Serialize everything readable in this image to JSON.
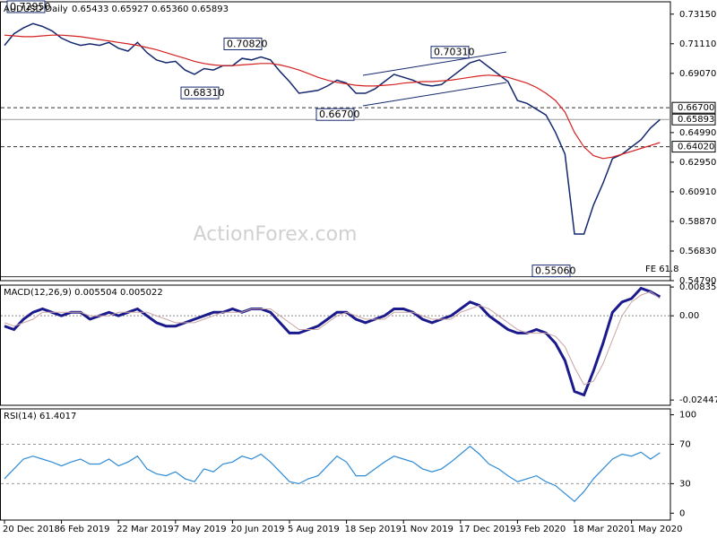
{
  "chart_data": [
    {
      "type": "line",
      "title": "AUDUSD Daily",
      "subtitle": "0.65433 0.65927 0.65360 0.65893",
      "watermark": "ActionForex.com",
      "ylim": [
        0.5479,
        0.74
      ],
      "yticks": [
        {
          "value": 0.7315,
          "label": "0.73150"
        },
        {
          "value": 0.7111,
          "label": "0.71110"
        },
        {
          "value": 0.6907,
          "label": "0.69070"
        },
        {
          "value": 0.6499,
          "label": "0.64990"
        },
        {
          "value": 0.6295,
          "label": "0.62950"
        },
        {
          "value": 0.6091,
          "label": "0.60910"
        },
        {
          "value": 0.5887,
          "label": "0.58870"
        },
        {
          "value": 0.5683,
          "label": "0.56830"
        },
        {
          "value": 0.5479,
          "label": "0.54790"
        }
      ],
      "levels": [
        {
          "value": 0.667,
          "label": "0.66700",
          "style": "dashed"
        },
        {
          "value": 0.65893,
          "label": "0.65893",
          "style": "solid"
        },
        {
          "value": 0.6402,
          "label": "0.64020",
          "style": "dashed"
        }
      ],
      "annotations": [
        {
          "value": 0.7295,
          "label": "0.72950"
        },
        {
          "value": 0.7082,
          "label": "0.70820"
        },
        {
          "value": 0.6831,
          "label": "0.68310"
        },
        {
          "value": 0.7031,
          "label": "0.70310"
        },
        {
          "value": 0.667,
          "label": "0.66700"
        },
        {
          "value": 0.5506,
          "label": "0.55060"
        }
      ],
      "note": "FE 61.8",
      "series": [
        {
          "name": "AUDUSD",
          "color": "#14286e",
          "values": [
            0.71,
            0.718,
            0.722,
            0.725,
            0.723,
            0.72,
            0.715,
            0.712,
            0.71,
            0.711,
            0.71,
            0.712,
            0.708,
            0.706,
            0.712,
            0.705,
            0.7,
            0.698,
            0.699,
            0.693,
            0.69,
            0.694,
            0.693,
            0.696,
            0.696,
            0.701,
            0.7,
            0.702,
            0.7,
            0.692,
            0.685,
            0.677,
            0.678,
            0.679,
            0.682,
            0.686,
            0.684,
            0.677,
            0.677,
            0.68,
            0.685,
            0.69,
            0.688,
            0.686,
            0.683,
            0.682,
            0.683,
            0.688,
            0.693,
            0.698,
            0.7,
            0.695,
            0.69,
            0.685,
            0.672,
            0.67,
            0.666,
            0.662,
            0.65,
            0.635,
            0.58,
            0.58,
            0.6,
            0.615,
            0.632,
            0.635,
            0.64,
            0.645,
            0.653,
            0.6589
          ]
        },
        {
          "name": "MA",
          "color": "#d42020",
          "values": [
            0.717,
            0.7165,
            0.716,
            0.716,
            0.7165,
            0.717,
            0.717,
            0.7165,
            0.716,
            0.715,
            0.714,
            0.713,
            0.712,
            0.711,
            0.71,
            0.7085,
            0.707,
            0.705,
            0.703,
            0.701,
            0.699,
            0.6975,
            0.6965,
            0.696,
            0.696,
            0.6965,
            0.697,
            0.6975,
            0.6975,
            0.6965,
            0.695,
            0.693,
            0.6905,
            0.688,
            0.686,
            0.6845,
            0.6835,
            0.6825,
            0.682,
            0.682,
            0.6825,
            0.683,
            0.684,
            0.6845,
            0.685,
            0.685,
            0.6855,
            0.686,
            0.687,
            0.688,
            0.689,
            0.6895,
            0.689,
            0.688,
            0.686,
            0.684,
            0.681,
            0.677,
            0.672,
            0.664,
            0.65,
            0.64,
            0.634,
            0.632,
            0.633,
            0.635,
            0.637,
            0.639,
            0.641,
            0.643
          ]
        }
      ]
    },
    {
      "type": "line",
      "title": "MACD(12,26,9) 0.005504 0.005022",
      "ylim": [
        -0.026,
        0.0089
      ],
      "yticks": [
        0.008354,
        {
          "value": 0,
          "label": "0.00"
        },
        -0.02447
      ],
      "series": [
        {
          "name": "MACD",
          "color": "#1a1a8c",
          "values": [
            -0.003,
            -0.004,
            -0.001,
            0.001,
            0.002,
            0.001,
            0.0,
            0.001,
            0.001,
            -0.001,
            0.0,
            0.001,
            0.0,
            0.001,
            0.002,
            0.0,
            -0.002,
            -0.003,
            -0.003,
            -0.002,
            -0.001,
            0.0,
            0.001,
            0.001,
            0.002,
            0.001,
            0.002,
            0.002,
            0.001,
            -0.002,
            -0.005,
            -0.005,
            -0.004,
            -0.003,
            -0.001,
            0.001,
            0.001,
            -0.001,
            -0.002,
            -0.001,
            0.0,
            0.002,
            0.002,
            0.001,
            -0.001,
            -0.002,
            -0.001,
            0.0,
            0.002,
            0.004,
            0.003,
            0.0,
            -0.002,
            -0.004,
            -0.005,
            -0.005,
            -0.004,
            -0.005,
            -0.008,
            -0.013,
            -0.022,
            -0.023,
            -0.016,
            -0.008,
            0.001,
            0.004,
            0.005,
            0.008,
            0.007,
            0.0055
          ]
        },
        {
          "name": "Signal",
          "color": "#c9a3a3",
          "values": [
            -0.002,
            -0.003,
            -0.002,
            -0.001,
            0.001,
            0.001,
            0.001,
            0.001,
            0.001,
            0.0,
            0.0,
            0.0,
            0.001,
            0.001,
            0.001,
            0.001,
            0.0,
            -0.001,
            -0.002,
            -0.002,
            -0.002,
            -0.001,
            0.0,
            0.001,
            0.001,
            0.001,
            0.002,
            0.002,
            0.002,
            0.0,
            -0.002,
            -0.004,
            -0.004,
            -0.004,
            -0.002,
            0.0,
            0.001,
            0.0,
            -0.001,
            -0.001,
            -0.001,
            0.001,
            0.001,
            0.001,
            0.0,
            -0.001,
            -0.001,
            -0.001,
            0.001,
            0.002,
            0.003,
            0.002,
            0.0,
            -0.002,
            -0.004,
            -0.005,
            -0.005,
            -0.005,
            -0.006,
            -0.009,
            -0.015,
            -0.02,
            -0.019,
            -0.014,
            -0.007,
            0.0,
            0.004,
            0.006,
            0.007,
            0.005
          ]
        }
      ]
    },
    {
      "type": "line",
      "title": "RSI(14) 61.4017",
      "ylim": [
        -7,
        106
      ],
      "yticks": [
        100,
        70,
        30,
        0
      ],
      "levels": [
        70,
        30
      ],
      "categories": [
        "20 Dec 2018",
        null,
        null,
        null,
        null,
        null,
        "6 Feb 2019",
        null,
        null,
        null,
        null,
        null,
        "22 Mar 2019",
        null,
        null,
        null,
        null,
        null,
        "7 May 2019",
        null,
        null,
        null,
        null,
        null,
        "20 Jun 2019",
        null,
        null,
        null,
        null,
        null,
        "5 Aug 2019",
        null,
        null,
        null,
        null,
        null,
        "18 Sep 2019",
        null,
        null,
        null,
        null,
        null,
        "1 Nov 2019",
        null,
        null,
        null,
        null,
        null,
        "17 Dec 2019",
        null,
        null,
        null,
        null,
        null,
        "3 Feb 2020",
        null,
        null,
        null,
        null,
        null,
        "18 Mar 2020",
        null,
        null,
        null,
        null,
        null,
        "1 May 2020",
        null,
        null,
        null
      ],
      "series": [
        {
          "name": "RSI",
          "color": "#2e8bd6",
          "values": [
            35,
            45,
            55,
            58,
            55,
            52,
            48,
            52,
            55,
            50,
            50,
            55,
            48,
            52,
            58,
            45,
            40,
            38,
            42,
            35,
            32,
            45,
            42,
            50,
            52,
            58,
            55,
            60,
            52,
            42,
            32,
            30,
            35,
            38,
            48,
            58,
            52,
            38,
            38,
            45,
            52,
            58,
            55,
            52,
            45,
            42,
            45,
            52,
            60,
            68,
            60,
            50,
            45,
            38,
            32,
            35,
            38,
            32,
            28,
            20,
            12,
            22,
            35,
            45,
            55,
            60,
            58,
            62,
            55,
            61.4
          ]
        }
      ]
    }
  ]
}
